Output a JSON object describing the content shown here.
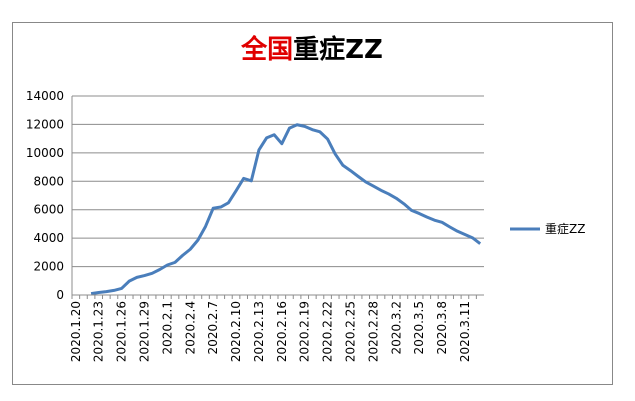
{
  "chart_data": {
    "type": "line",
    "title": [
      "全国",
      "重症ZZ"
    ],
    "title_colors": [
      "#e00000",
      "#000000"
    ],
    "categories": [
      "2020.1.20",
      null,
      null,
      "2020.1.23",
      null,
      null,
      "2020.1.26",
      null,
      null,
      "2020.1.29",
      null,
      null,
      "2020.2.1",
      null,
      null,
      "2020.2.4",
      null,
      null,
      "2020.2.7",
      null,
      null,
      "2020.2.10",
      null,
      null,
      "2020.2.13",
      null,
      null,
      "2020.2.16",
      null,
      null,
      "2020.2.19",
      null,
      null,
      "2020.2.22",
      null,
      null,
      "2020.2.25",
      null,
      null,
      "2020.2.28",
      null,
      null,
      "2020.3.2",
      null,
      null,
      "2020.3.5",
      null,
      null,
      "2020.3.8",
      null,
      null,
      "2020.3.11",
      null,
      null
    ],
    "series": [
      {
        "name": "重症ZZ",
        "color": "#4a7ebb",
        "values": [
          null,
          null,
          95,
          177,
          237,
          324,
          461,
          976,
          1239,
          1370,
          1527,
          1795,
          2110,
          2296,
          2788,
          3219,
          3859,
          4821,
          6101,
          6188,
          6484,
          7333,
          8204,
          8030,
          10204,
          11053,
          11272,
          10644,
          11741,
          11977,
          11864,
          11633,
          11477,
          10968,
          9915,
          9126,
          8752,
          8346,
          7952,
          7664,
          7365,
          7110,
          6806,
          6416,
          5952,
          5737,
          5489,
          5264,
          5111,
          4794,
          4492,
          4257,
          4020,
          3610
        ]
      }
    ],
    "ylim": [
      0,
      14000
    ],
    "yticks": [
      0,
      2000,
      4000,
      6000,
      8000,
      10000,
      12000,
      14000
    ],
    "grid": true,
    "legend": "right"
  }
}
